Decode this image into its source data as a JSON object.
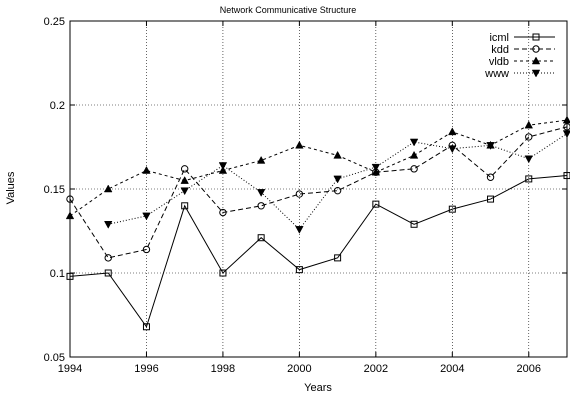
{
  "chart_data": {
    "type": "line",
    "title": "Network Communicative Structure",
    "xlabel": "Years",
    "ylabel": "Values",
    "xlim": [
      1994,
      2007
    ],
    "ylim": [
      0.05,
      0.25
    ],
    "xticks": [
      1994,
      1996,
      1998,
      2000,
      2002,
      2004,
      2006
    ],
    "yticks": [
      0.05,
      0.1,
      0.15,
      0.2,
      0.25
    ],
    "ytick_labels": [
      "0.05",
      "0.1",
      "0.15",
      "0.2",
      "0.25"
    ],
    "grid": true,
    "legend_position": "top-right",
    "series": [
      {
        "name": "icml",
        "marker": "square",
        "dash": "solid",
        "points": [
          [
            1994,
            0.098
          ],
          [
            1995,
            0.1
          ],
          [
            1996,
            0.068
          ],
          [
            1997,
            0.14
          ],
          [
            1998,
            0.1
          ],
          [
            1999,
            0.121
          ],
          [
            2000,
            0.102
          ],
          [
            2001,
            0.109
          ],
          [
            2002,
            0.141
          ],
          [
            2003,
            0.129
          ],
          [
            2004,
            0.138
          ],
          [
            2005,
            0.144
          ],
          [
            2006,
            0.156
          ],
          [
            2007,
            0.158
          ]
        ]
      },
      {
        "name": "kdd",
        "marker": "circle",
        "dash": "dashed",
        "points": [
          [
            1994,
            0.144
          ],
          [
            1995,
            0.109
          ],
          [
            1996,
            0.114
          ],
          [
            1997,
            0.162
          ],
          [
            1998,
            0.136
          ],
          [
            1999,
            0.14
          ],
          [
            2000,
            0.147
          ],
          [
            2001,
            0.149
          ],
          [
            2002,
            0.16
          ],
          [
            2003,
            0.162
          ],
          [
            2004,
            0.176
          ],
          [
            2005,
            0.157
          ],
          [
            2006,
            0.181
          ],
          [
            2007,
            0.187
          ]
        ]
      },
      {
        "name": "vldb",
        "marker": "triangle-up",
        "dash": "short-dashed",
        "points": [
          [
            1994,
            0.134
          ],
          [
            1995,
            0.15
          ],
          [
            1996,
            0.161
          ],
          [
            1997,
            0.155
          ],
          [
            1998,
            0.161
          ],
          [
            1999,
            0.167
          ],
          [
            2000,
            0.176
          ],
          [
            2001,
            0.17
          ],
          [
            2002,
            0.16
          ],
          [
            2003,
            0.17
          ],
          [
            2004,
            0.184
          ],
          [
            2005,
            0.176
          ],
          [
            2006,
            0.188
          ],
          [
            2007,
            0.191
          ]
        ]
      },
      {
        "name": "www",
        "marker": "triangle-down",
        "dash": "dotted",
        "points": [
          [
            1995,
            0.129
          ],
          [
            1996,
            0.134
          ],
          [
            1997,
            0.149
          ],
          [
            1998,
            0.164
          ],
          [
            1999,
            0.148
          ],
          [
            2000,
            0.126
          ],
          [
            2001,
            0.156
          ],
          [
            2002,
            0.163
          ],
          [
            2003,
            0.178
          ],
          [
            2004,
            0.174
          ],
          [
            2005,
            0.176
          ],
          [
            2006,
            0.168
          ],
          [
            2007,
            0.183
          ]
        ]
      }
    ]
  }
}
